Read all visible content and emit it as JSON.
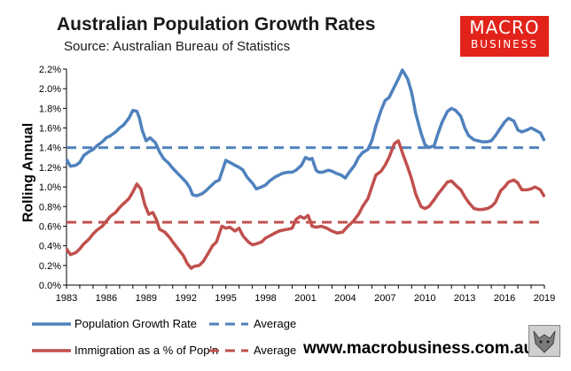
{
  "header": {
    "title": "Australian Population Growth Rates",
    "subtitle": "Source: Australian Bureau of Statistics"
  },
  "logo": {
    "line1": "MACRO",
    "line2": "BUSINESS"
  },
  "footer": {
    "url": "www.macrobusiness.com.au"
  },
  "colors": {
    "blue": "#4f81bd",
    "red": "#c0504d",
    "logo_red": "#e2231a"
  },
  "chart_data": {
    "type": "line",
    "title": "Australian Population Growth Rates",
    "ylabel": "Rolling Annual",
    "xlabel": "",
    "ylim": [
      0,
      2.2
    ],
    "xlim": [
      1983,
      2019
    ],
    "yticks": [
      "0.0%",
      "0.2%",
      "0.4%",
      "0.6%",
      "0.8%",
      "1.0%",
      "1.2%",
      "1.4%",
      "1.6%",
      "1.8%",
      "2.0%",
      "2.2%"
    ],
    "xticks": [
      "1983",
      "1986",
      "1989",
      "1992",
      "1995",
      "1998",
      "2001",
      "2004",
      "2007",
      "2010",
      "2013",
      "2016",
      "2019"
    ],
    "grid": false,
    "series": [
      {
        "name": "Population Growth Rate",
        "color": "#4f81bd",
        "style": "solid",
        "x": [
          1983.0,
          1983.3,
          1983.7,
          1984.0,
          1984.3,
          1984.7,
          1985.0,
          1985.3,
          1985.7,
          1986.0,
          1986.3,
          1986.7,
          1987.0,
          1987.3,
          1987.7,
          1988.0,
          1988.3,
          1988.5,
          1988.7,
          1989.0,
          1989.3,
          1989.7,
          1990.0,
          1990.3,
          1990.7,
          1991.0,
          1991.5,
          1992.0,
          1992.3,
          1992.5,
          1992.8,
          1993.2,
          1993.5,
          1993.8,
          1994.2,
          1994.5,
          1995.0,
          1995.3,
          1995.7,
          1996.0,
          1996.3,
          1996.6,
          1997.0,
          1997.3,
          1997.7,
          1998.0,
          1998.3,
          1998.7,
          1999.0,
          1999.3,
          1999.7,
          2000.0,
          2000.3,
          2000.7,
          2001.0,
          2001.3,
          2001.5,
          2001.8,
          2002.0,
          2002.3,
          2002.7,
          2003.0,
          2003.3,
          2003.7,
          2004.0,
          2004.3,
          2004.7,
          2005.0,
          2005.3,
          2005.7,
          2006.0,
          2006.3,
          2006.7,
          2007.0,
          2007.3,
          2007.7,
          2008.0,
          2008.3,
          2008.7,
          2009.0,
          2009.3,
          2009.7,
          2010.0,
          2010.3,
          2010.7,
          2011.0,
          2011.3,
          2011.7,
          2012.0,
          2012.3,
          2012.7,
          2013.0,
          2013.3,
          2013.7,
          2014.0,
          2014.3,
          2014.7,
          2015.0,
          2015.3,
          2015.7,
          2016.0,
          2016.3,
          2016.7,
          2017.0,
          2017.3,
          2017.7,
          2018.0,
          2018.3,
          2018.7,
          2019.0
        ],
        "values": [
          1.28,
          1.21,
          1.22,
          1.25,
          1.32,
          1.36,
          1.38,
          1.42,
          1.46,
          1.5,
          1.52,
          1.56,
          1.6,
          1.63,
          1.7,
          1.78,
          1.77,
          1.7,
          1.58,
          1.47,
          1.5,
          1.45,
          1.36,
          1.29,
          1.24,
          1.19,
          1.12,
          1.05,
          0.99,
          0.92,
          0.91,
          0.93,
          0.96,
          1.0,
          1.05,
          1.07,
          1.27,
          1.25,
          1.22,
          1.2,
          1.17,
          1.1,
          1.04,
          0.98,
          1.0,
          1.02,
          1.06,
          1.1,
          1.12,
          1.14,
          1.15,
          1.15,
          1.17,
          1.22,
          1.3,
          1.28,
          1.29,
          1.17,
          1.15,
          1.15,
          1.17,
          1.16,
          1.14,
          1.12,
          1.09,
          1.15,
          1.22,
          1.3,
          1.35,
          1.38,
          1.47,
          1.62,
          1.78,
          1.88,
          1.91,
          2.02,
          2.1,
          2.19,
          2.1,
          1.96,
          1.75,
          1.55,
          1.43,
          1.4,
          1.42,
          1.55,
          1.66,
          1.77,
          1.8,
          1.78,
          1.72,
          1.6,
          1.52,
          1.48,
          1.47,
          1.46,
          1.46,
          1.47,
          1.52,
          1.6,
          1.66,
          1.7,
          1.67,
          1.58,
          1.56,
          1.58,
          1.6,
          1.58,
          1.55,
          1.47
        ]
      },
      {
        "name": "Average",
        "color": "#4f81bd",
        "style": "dashed",
        "x": [
          1983,
          2019
        ],
        "values": [
          1.4,
          1.4
        ]
      },
      {
        "name": "Immigration as a % of Pop'n",
        "color": "#c0504d",
        "style": "solid",
        "x": [
          1983.0,
          1983.3,
          1983.7,
          1984.0,
          1984.3,
          1984.7,
          1985.0,
          1985.3,
          1985.7,
          1986.0,
          1986.3,
          1986.7,
          1987.0,
          1987.3,
          1987.7,
          1988.0,
          1988.3,
          1988.6,
          1988.9,
          1989.2,
          1989.5,
          1989.8,
          1990.0,
          1990.4,
          1990.8,
          1991.0,
          1991.4,
          1991.8,
          1992.1,
          1992.4,
          1992.6,
          1993.0,
          1993.3,
          1993.7,
          1994.0,
          1994.3,
          1994.7,
          1995.0,
          1995.3,
          1995.7,
          1996.0,
          1996.3,
          1996.7,
          1997.0,
          1997.3,
          1997.7,
          1998.0,
          1998.3,
          1998.7,
          1999.0,
          1999.3,
          1999.7,
          2000.0,
          2000.3,
          2000.6,
          2000.9,
          2001.2,
          2001.5,
          2001.8,
          2002.2,
          2002.6,
          2003.0,
          2003.4,
          2003.8,
          2004.2,
          2004.6,
          2005.0,
          2005.3,
          2005.7,
          2006.0,
          2006.3,
          2006.7,
          2007.0,
          2007.3,
          2007.7,
          2008.0,
          2008.3,
          2008.7,
          2009.0,
          2009.3,
          2009.7,
          2010.0,
          2010.3,
          2010.7,
          2011.0,
          2011.3,
          2011.7,
          2012.0,
          2012.3,
          2012.7,
          2013.0,
          2013.3,
          2013.7,
          2014.0,
          2014.3,
          2014.7,
          2015.0,
          2015.3,
          2015.7,
          2016.0,
          2016.3,
          2016.7,
          2017.0,
          2017.3,
          2017.7,
          2018.0,
          2018.3,
          2018.7,
          2019.0
        ],
        "values": [
          0.37,
          0.31,
          0.33,
          0.37,
          0.42,
          0.47,
          0.52,
          0.56,
          0.6,
          0.65,
          0.7,
          0.74,
          0.79,
          0.83,
          0.88,
          0.95,
          1.03,
          0.98,
          0.82,
          0.72,
          0.74,
          0.66,
          0.57,
          0.54,
          0.48,
          0.44,
          0.37,
          0.3,
          0.22,
          0.17,
          0.19,
          0.2,
          0.24,
          0.33,
          0.4,
          0.44,
          0.6,
          0.58,
          0.59,
          0.55,
          0.58,
          0.5,
          0.44,
          0.41,
          0.42,
          0.44,
          0.48,
          0.5,
          0.53,
          0.55,
          0.56,
          0.57,
          0.58,
          0.67,
          0.7,
          0.68,
          0.71,
          0.6,
          0.59,
          0.6,
          0.58,
          0.55,
          0.53,
          0.54,
          0.6,
          0.65,
          0.72,
          0.8,
          0.88,
          1.0,
          1.12,
          1.16,
          1.22,
          1.3,
          1.44,
          1.47,
          1.35,
          1.2,
          1.08,
          0.93,
          0.8,
          0.78,
          0.8,
          0.87,
          0.93,
          0.98,
          1.05,
          1.06,
          1.02,
          0.97,
          0.9,
          0.84,
          0.78,
          0.77,
          0.77,
          0.78,
          0.8,
          0.84,
          0.96,
          1.0,
          1.05,
          1.07,
          1.04,
          0.97,
          0.97,
          0.98,
          1.0,
          0.97,
          0.9
        ]
      },
      {
        "name": "Average",
        "color": "#c0504d",
        "style": "dashed",
        "x": [
          1983,
          2019
        ],
        "values": [
          0.64,
          0.64
        ]
      }
    ],
    "legend": [
      {
        "label": "Population Growth Rate",
        "color": "#4f81bd",
        "style": "solid"
      },
      {
        "label": "Average",
        "color": "#4f81bd",
        "style": "dashed"
      },
      {
        "label": "Immigration as a % of Pop'n",
        "color": "#c0504d",
        "style": "solid"
      },
      {
        "label": "Average",
        "color": "#c0504d",
        "style": "dashed"
      }
    ]
  }
}
